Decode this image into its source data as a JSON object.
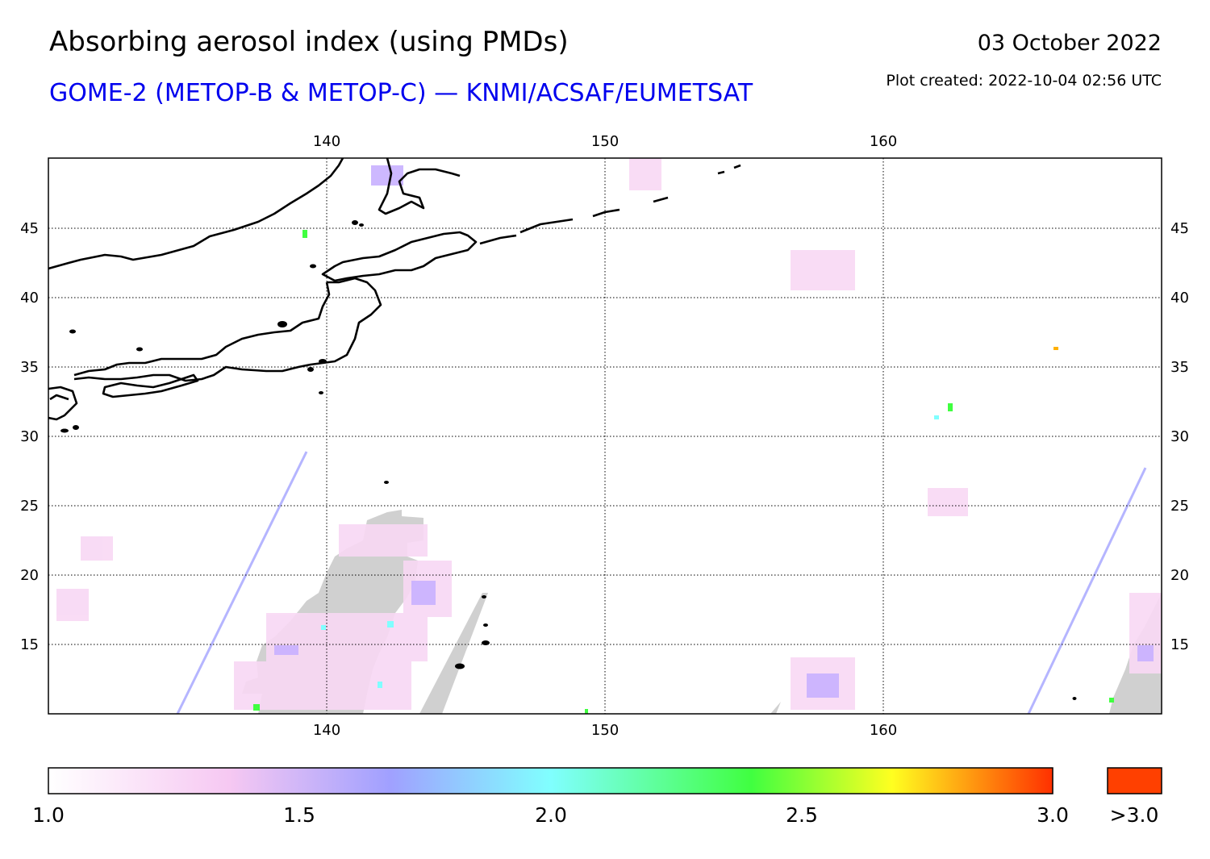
{
  "header": {
    "title": "Absorbing aerosol index (using PMDs)",
    "subtitle": "GOME-2 (METOP-B & METOP-C) — KNMI/ACSAF/EUMETSAT",
    "date": "03 October 2022",
    "plot_created": "Plot created: 2022-10-04 02:56 UTC"
  },
  "map": {
    "lon_range": [
      130,
      170
    ],
    "lat_range": [
      10,
      50
    ],
    "lon_ticks": [
      "140",
      "150",
      "160"
    ],
    "lat_ticks": [
      "45",
      "40",
      "35",
      "30",
      "25",
      "20",
      "15"
    ],
    "no_data_color": "#d0d0d0",
    "coastline_color": "#000000",
    "grid": "dotted"
  },
  "colorbar": {
    "labels": [
      "1.0",
      "1.5",
      "2.0",
      "2.5",
      "3.0"
    ],
    "overflow_label": ">3.0",
    "overflow_color": "#ff4000",
    "stops": [
      "#ffffff",
      "#f6c8f2",
      "#a0a0ff",
      "#80ffff",
      "#40ff40",
      "#ffff20",
      "#ff3000"
    ]
  }
}
